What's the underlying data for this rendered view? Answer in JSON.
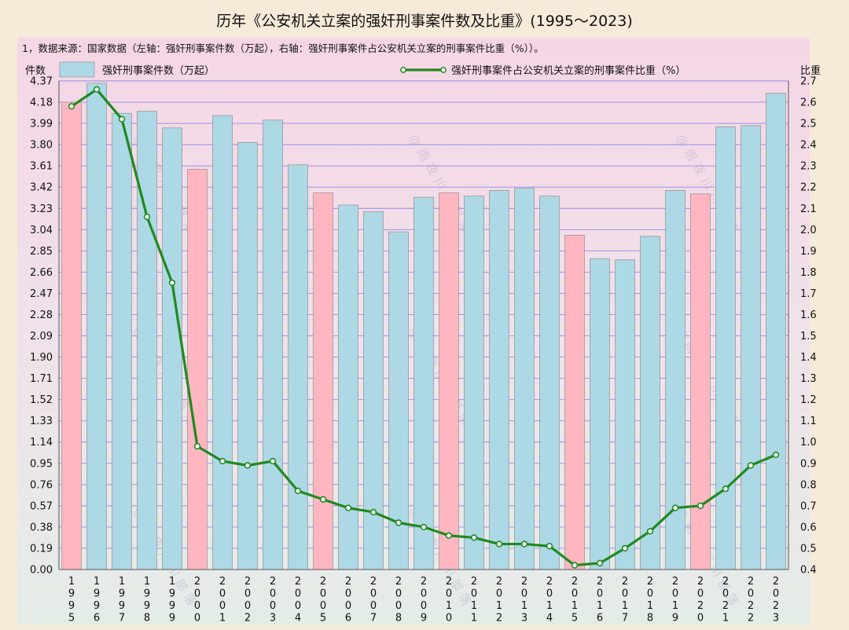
{
  "title": "历年《公安机关立案的强奸刑事案件数及比重》(1995～2023)",
  "note": "1，数据来源：国家数据（左轴：强奸刑事案件数（万起），右轴：强奸刑事案件占公安机关立案的刑事案件比重（%））。",
  "watermark": "@雨夜川川部落",
  "colors": {
    "bar_blue": "#add8e6",
    "bar_pink": "#ffb6c1",
    "line": "#1f8a1f",
    "grid": "#6f6ff0",
    "marker_fill": "#ffffff"
  },
  "chart_data": {
    "type": "bar+line",
    "categories": [
      "1995",
      "1996",
      "1997",
      "1998",
      "1999",
      "2000",
      "2001",
      "2002",
      "2003",
      "2004",
      "2005",
      "2006",
      "2007",
      "2008",
      "2009",
      "2010",
      "2011",
      "2012",
      "2013",
      "2014",
      "2015",
      "2016",
      "2017",
      "2018",
      "2019",
      "2020",
      "2021",
      "2022",
      "2023"
    ],
    "highlight_years": [
      "1995",
      "2000",
      "2005",
      "2010",
      "2015",
      "2020"
    ],
    "y_left": {
      "label": "件数",
      "min": 0,
      "max": 4.37,
      "ticks": [
        "0.00",
        "0.19",
        "0.38",
        "0.57",
        "0.76",
        "0.95",
        "1.14",
        "1.33",
        "1.52",
        "1.71",
        "1.90",
        "2.09",
        "2.28",
        "2.47",
        "2.66",
        "2.85",
        "3.04",
        "3.23",
        "3.42",
        "3.61",
        "3.80",
        "3.99",
        "4.18",
        "4.37"
      ]
    },
    "y_right": {
      "label": "比重",
      "min": 0.4,
      "max": 2.7,
      "ticks": [
        "0.4",
        "0.5",
        "0.6",
        "0.7",
        "0.8",
        "0.9",
        "1.0",
        "1.1",
        "1.2",
        "1.3",
        "1.4",
        "1.5",
        "1.6",
        "1.7",
        "1.8",
        "1.9",
        "2.0",
        "2.1",
        "2.2",
        "2.3",
        "2.4",
        "2.5",
        "2.6",
        "2.7"
      ]
    },
    "series": [
      {
        "name": "强奸刑事案件数（万起）",
        "type": "bar",
        "axis": "left",
        "values": [
          4.18,
          4.35,
          4.08,
          4.1,
          3.95,
          3.58,
          4.06,
          3.82,
          4.02,
          3.62,
          3.37,
          3.26,
          3.2,
          3.02,
          3.33,
          3.37,
          3.34,
          3.39,
          3.41,
          3.34,
          2.99,
          2.78,
          2.77,
          2.98,
          3.39,
          3.36,
          3.96,
          3.97,
          4.26
        ]
      },
      {
        "name": "强奸刑事案件占公安机关立案的刑事案件比重（%）",
        "type": "line",
        "axis": "right",
        "values": [
          2.58,
          2.66,
          2.52,
          2.06,
          1.75,
          0.98,
          0.91,
          0.89,
          0.91,
          0.77,
          0.73,
          0.69,
          0.67,
          0.62,
          0.6,
          0.56,
          0.55,
          0.52,
          0.52,
          0.51,
          0.42,
          0.43,
          0.5,
          0.58,
          0.69,
          0.7,
          0.78,
          0.89,
          0.94
        ]
      }
    ],
    "legend": "top",
    "grid": true
  }
}
